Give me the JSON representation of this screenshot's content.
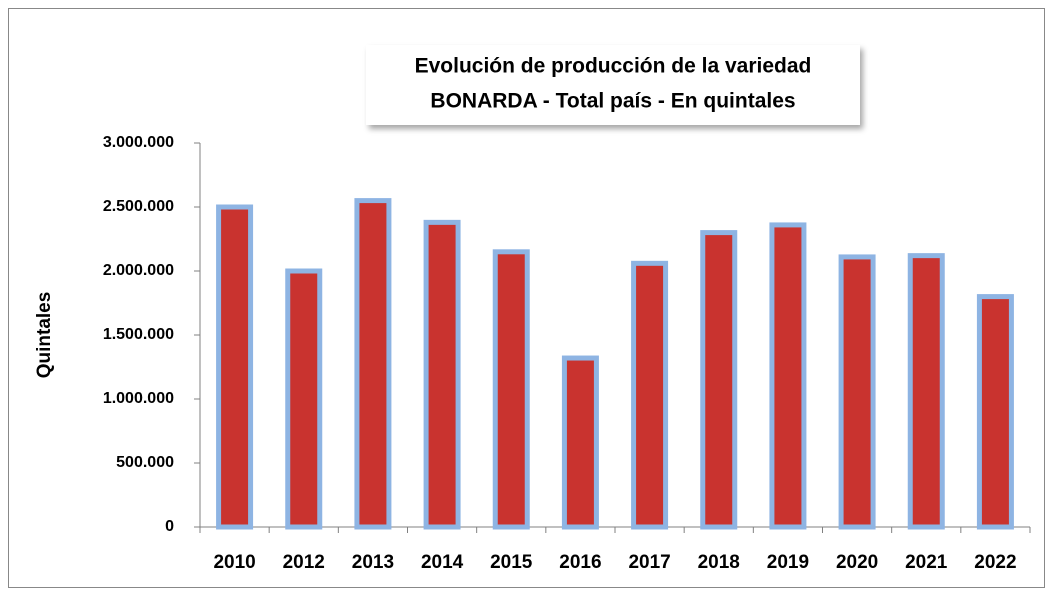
{
  "chart_data": {
    "type": "bar",
    "title": [
      "Evolución de producción de la variedad",
      "BONARDA - Total país - En quintales"
    ],
    "y_label": "Quintales",
    "categories": [
      "2010",
      "2012",
      "2013",
      "2014",
      "2015",
      "2016",
      "2017",
      "2018",
      "2019",
      "2020",
      "2021",
      "2022"
    ],
    "values": [
      2500000,
      2000000,
      2550000,
      2380000,
      2150000,
      1320000,
      2060000,
      2300000,
      2360000,
      2110000,
      2120000,
      1800000
    ],
    "color": "#c9332f",
    "edge_color": "#8eb4e3",
    "ylim": [
      0,
      3000000
    ],
    "yticks": [
      0,
      {
        "value": 500000,
        "label": "500.000"
      },
      {
        "value": 1000000,
        "label": "1.000.000"
      },
      {
        "value": 1500000,
        "label": "1.500.000"
      },
      {
        "value": 2000000,
        "label": "2.000.000"
      },
      {
        "value": 2500000,
        "label": "2.500.000"
      },
      {
        "value": 3000000,
        "label": "3.000.000"
      }
    ],
    "grid": false
  }
}
